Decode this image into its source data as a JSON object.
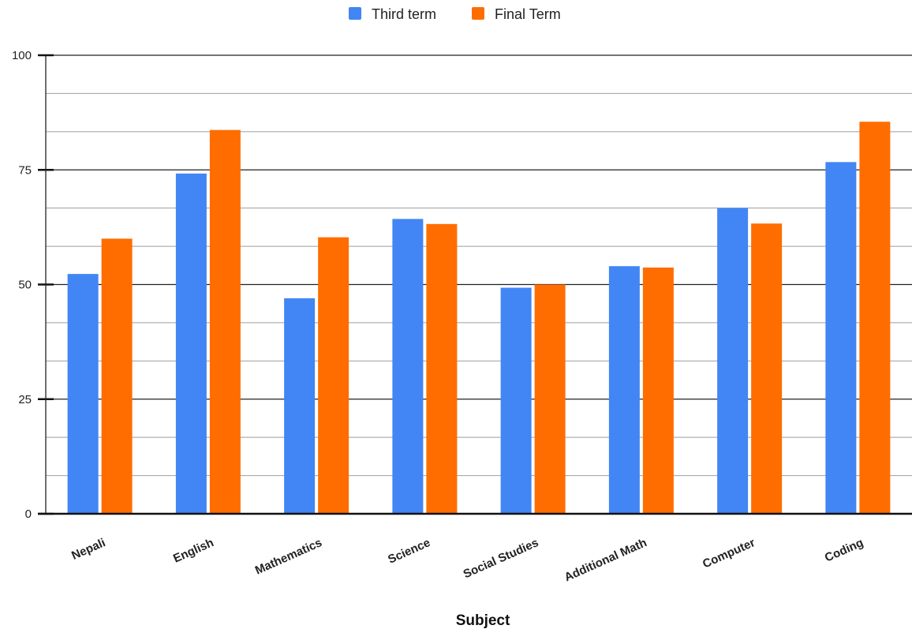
{
  "chart_data": {
    "type": "bar",
    "title": "",
    "xlabel": "Subject",
    "ylabel": "",
    "categories": [
      "Nepali",
      "English",
      "Mathematics",
      "Science",
      "Social Studies",
      "Additional Math",
      "Computer",
      "Coding"
    ],
    "series": [
      {
        "name": "Third term",
        "color": "#4285f4",
        "values": [
          52.3,
          74.2,
          47.0,
          64.3,
          49.3,
          54.0,
          66.7,
          76.7
        ]
      },
      {
        "name": "Final Term",
        "color": "#ff6d01",
        "values": [
          60.0,
          83.7,
          60.3,
          63.2,
          50.0,
          53.7,
          63.3,
          85.5
        ]
      }
    ],
    "ylim": [
      0,
      100
    ],
    "yticks": [
      0,
      25,
      50,
      75,
      100
    ],
    "grid": true,
    "legend_position": "top"
  }
}
